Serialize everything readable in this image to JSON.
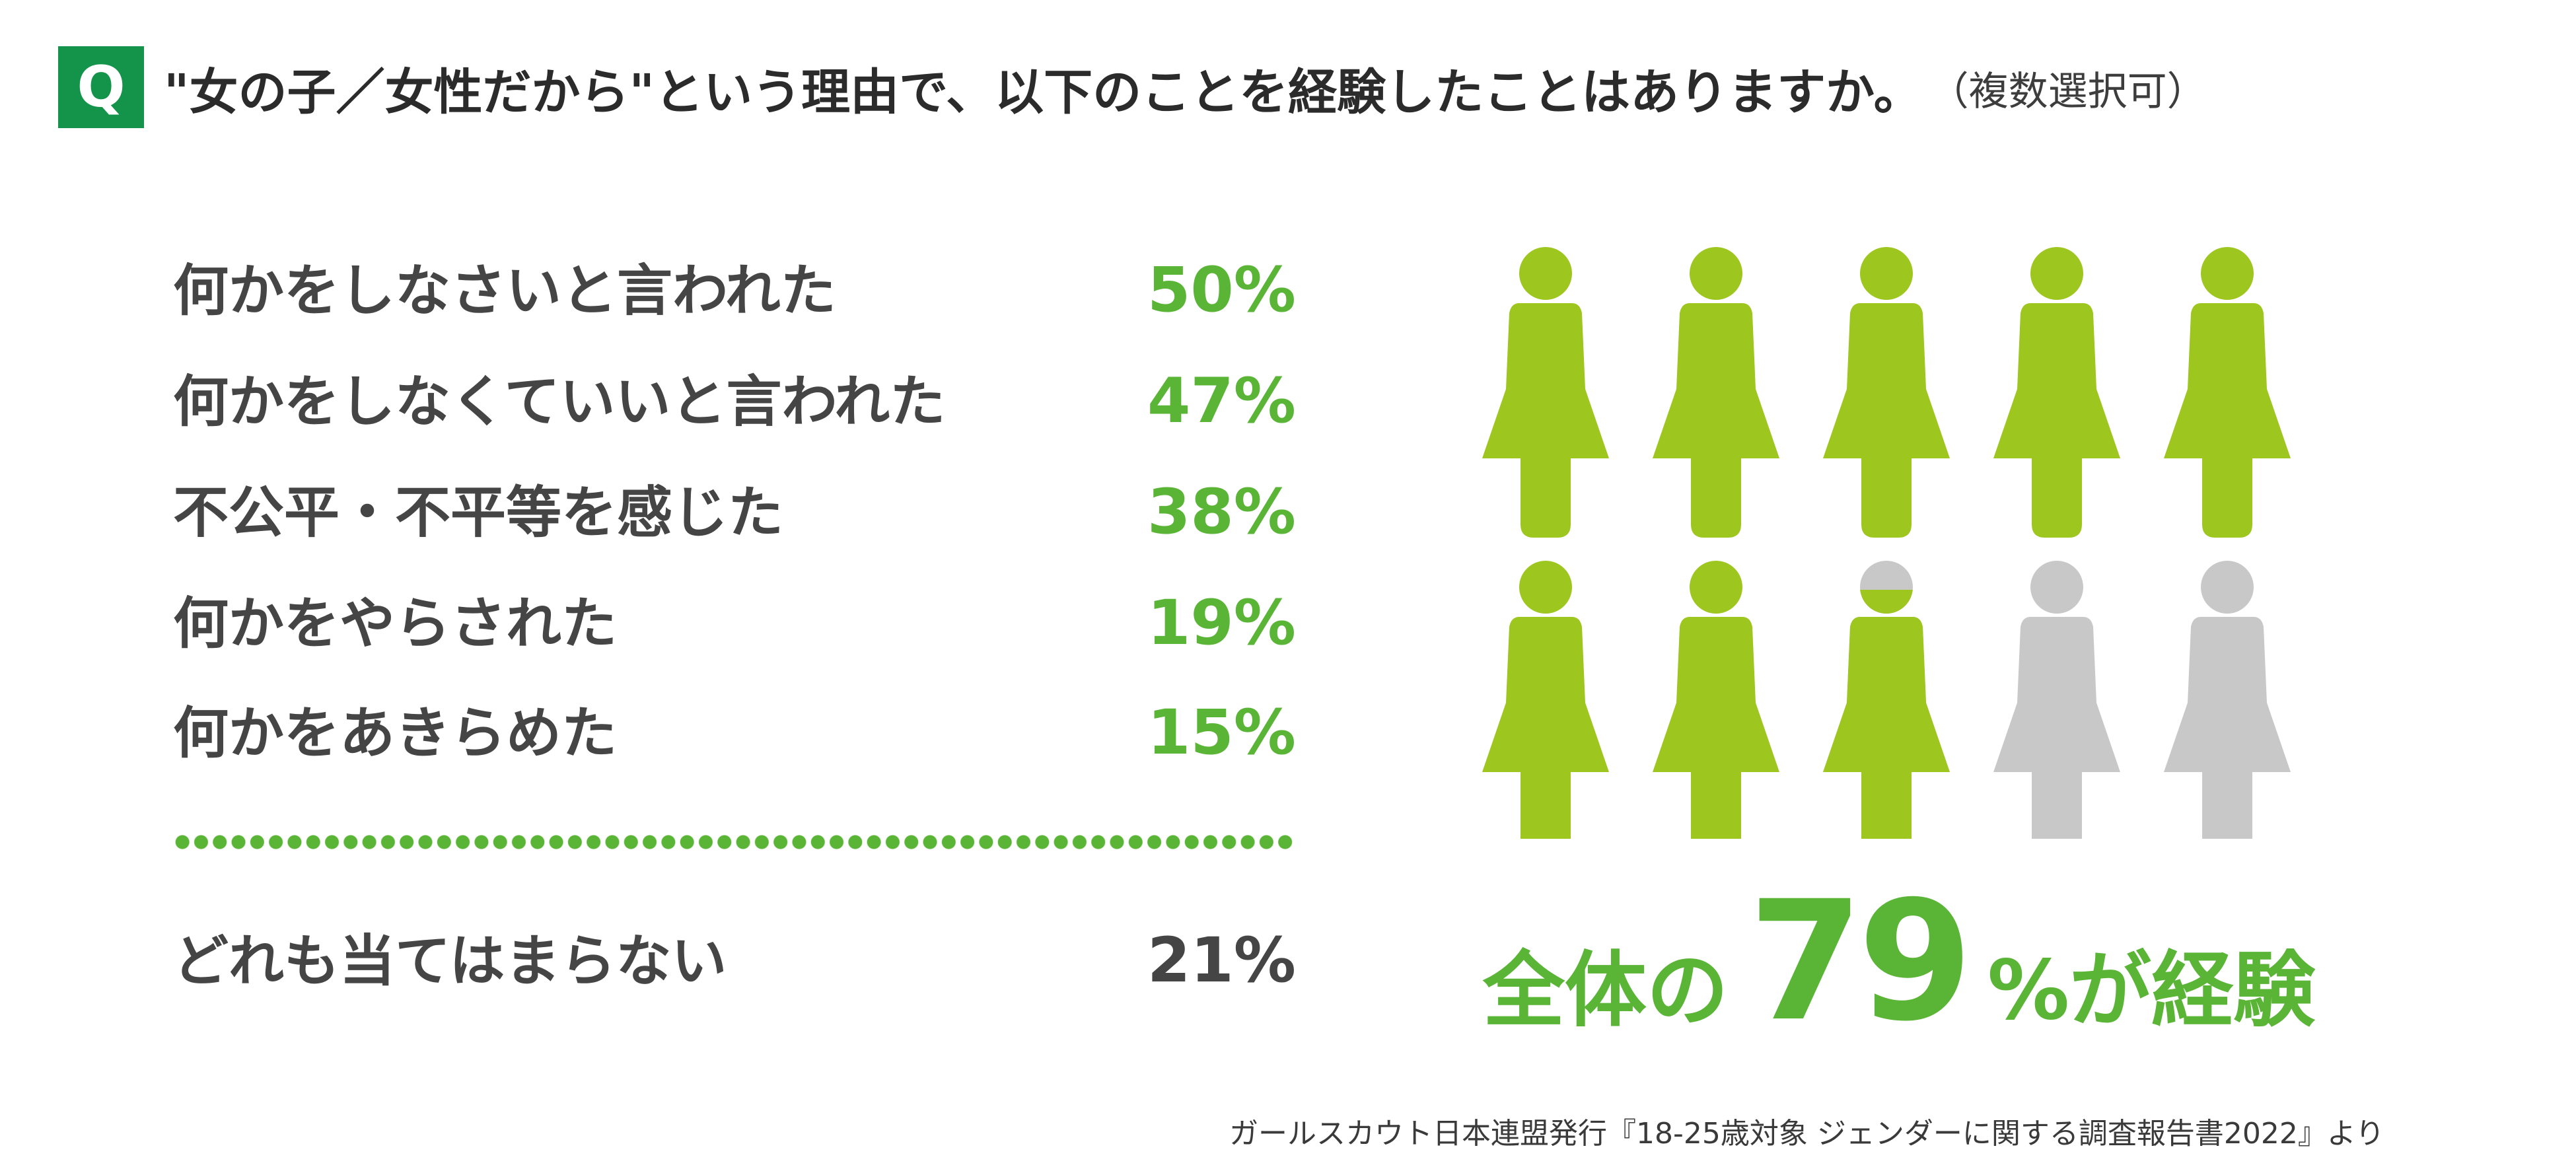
{
  "question": {
    "badge": "Q",
    "text": "\"女の子／女性だから\"という理由で、以下のことを経験したことはありますか。",
    "note": "（複数選択可）"
  },
  "chart_data": {
    "type": "bar",
    "categories": [
      "何かをしなさいと言われた",
      "何かをしなくていいと言われた",
      "不公平・不平等を感じた",
      "何かをやらされた",
      "何かをあきらめた",
      "どれも当てはまらない"
    ],
    "values": [
      50,
      47,
      38,
      19,
      15,
      21
    ],
    "value_labels": [
      "50%",
      "47%",
      "38%",
      "19%",
      "15%",
      "21%"
    ]
  },
  "summary": {
    "prefix": "全体の",
    "value": "79",
    "suffix": "%が経験",
    "percent": 79,
    "figure_count": 10
  },
  "colors": {
    "accent_green": "#5ab537",
    "figure_filled": "#9dc61f",
    "figure_empty": "#c8c8c8",
    "badge_green": "#13944a"
  },
  "source": "ガールスカウト日本連盟発行『18-25歳対象 ジェンダーに関する調査報告書2022』より"
}
